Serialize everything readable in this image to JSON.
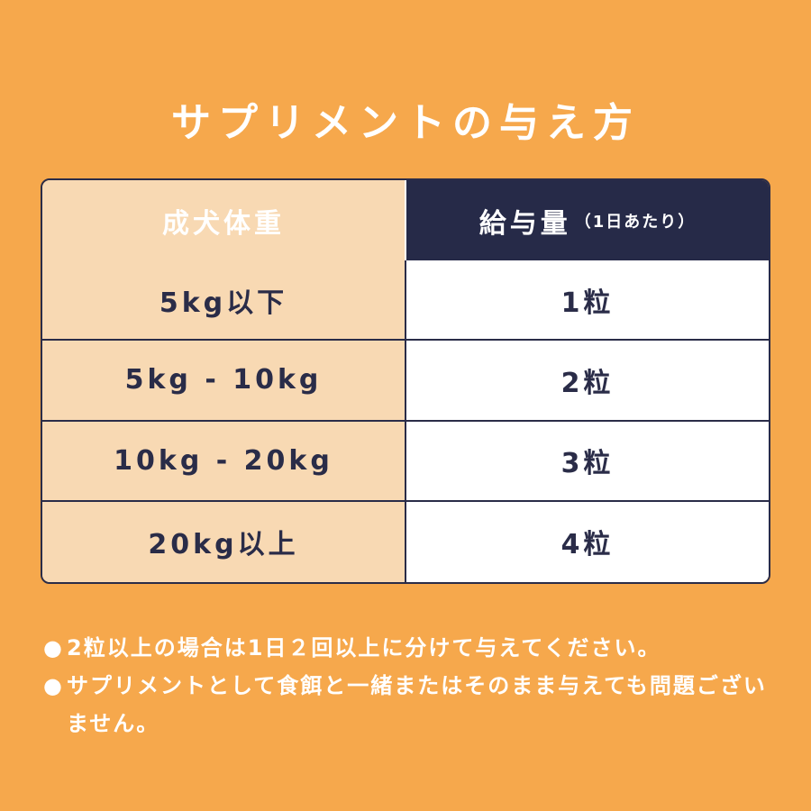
{
  "title": "サプリメントの与え方",
  "table": {
    "header_weight": "成犬体重",
    "header_amount": "給与量",
    "header_amount_note": "（1日あたり）",
    "rows": [
      {
        "weight": "5kg以下",
        "amount": "1粒"
      },
      {
        "weight": "5kg - 10kg",
        "amount": "2粒"
      },
      {
        "weight": "10kg - 20kg",
        "amount": "3粒"
      },
      {
        "weight": "20kg以上",
        "amount": "4粒"
      }
    ]
  },
  "notes": [
    {
      "bullet": "●",
      "text": "2粒以上の場合は1日２回以上に分けて与えてください。"
    },
    {
      "bullet": "●",
      "text": "サプリメントとして食餌と一緒またはそのまま与えても問題ございません。"
    }
  ],
  "colors": {
    "background": "#F6A84C",
    "header": "#262A48",
    "weight_cell": "#F8D9B3"
  }
}
